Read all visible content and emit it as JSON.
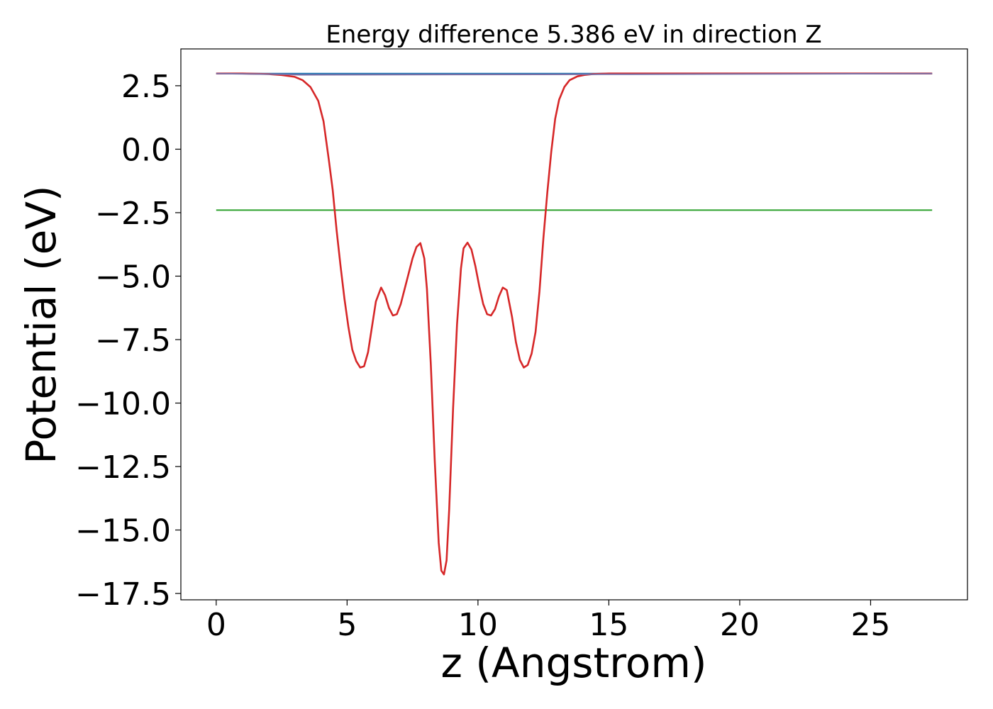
{
  "chart_data": {
    "type": "line",
    "title": "Energy difference 5.386 eV in direction Z",
    "xlabel": "z (Angstrom)",
    "ylabel": "Potential (eV)",
    "xlim": [
      -1.35,
      28.7
    ],
    "ylim": [
      -17.75,
      3.95
    ],
    "xticks": [
      0,
      5,
      10,
      15,
      20,
      25
    ],
    "xtick_labels": [
      "0",
      "5",
      "10",
      "15",
      "20",
      "25"
    ],
    "yticks": [
      2.5,
      0.0,
      -2.5,
      -5.0,
      -7.5,
      -10.0,
      -12.5,
      -15.0,
      -17.5
    ],
    "ytick_labels": [
      "2.5",
      "0.0",
      "−2.5",
      "−5.0",
      "−7.5",
      "−10.0",
      "−12.5",
      "−15.0",
      "−17.5"
    ],
    "grid": false,
    "legend": "none",
    "series": [
      {
        "color": "#1f77b4",
        "x": [
          0,
          27.35
        ],
        "y": [
          2.98,
          2.98
        ]
      },
      {
        "color": "#2ca02c",
        "x": [
          0,
          27.35
        ],
        "y": [
          -2.4,
          -2.4
        ]
      },
      {
        "color": "#d62728",
        "x": [
          0,
          1.0,
          2.0,
          2.5,
          3.0,
          3.3,
          3.6,
          3.9,
          4.1,
          4.3,
          4.45,
          4.6,
          4.75,
          4.9,
          5.05,
          5.2,
          5.35,
          5.5,
          5.65,
          5.8,
          5.95,
          6.1,
          6.3,
          6.45,
          6.6,
          6.75,
          6.9,
          7.05,
          7.2,
          7.35,
          7.5,
          7.65,
          7.8,
          7.95,
          8.05,
          8.2,
          8.35,
          8.5,
          8.6,
          8.7,
          8.8,
          8.9,
          9.05,
          9.2,
          9.35,
          9.45,
          9.6,
          9.75,
          9.9,
          10.05,
          10.2,
          10.35,
          10.5,
          10.65,
          10.8,
          10.95,
          11.1,
          11.3,
          11.45,
          11.6,
          11.75,
          11.9,
          12.05,
          12.2,
          12.35,
          12.5,
          12.65,
          12.8,
          12.95,
          13.1,
          13.3,
          13.5,
          13.8,
          14.1,
          14.4,
          14.7,
          15.0,
          16.0,
          20.0,
          24.0,
          27.35
        ],
        "y": [
          2.98,
          2.98,
          2.96,
          2.92,
          2.85,
          2.72,
          2.45,
          1.9,
          1.1,
          -0.4,
          -1.6,
          -3.2,
          -4.6,
          -5.9,
          -7.0,
          -7.9,
          -8.35,
          -8.6,
          -8.55,
          -8.0,
          -7.0,
          -6.0,
          -5.45,
          -5.75,
          -6.25,
          -6.55,
          -6.5,
          -6.1,
          -5.5,
          -4.9,
          -4.3,
          -3.85,
          -3.7,
          -4.3,
          -5.5,
          -8.5,
          -12.3,
          -15.5,
          -16.6,
          -16.75,
          -16.2,
          -14.2,
          -10.2,
          -6.9,
          -4.7,
          -3.9,
          -3.68,
          -3.95,
          -4.6,
          -5.4,
          -6.1,
          -6.5,
          -6.55,
          -6.3,
          -5.8,
          -5.45,
          -5.55,
          -6.6,
          -7.6,
          -8.3,
          -8.6,
          -8.5,
          -8.05,
          -7.2,
          -5.6,
          -3.5,
          -1.7,
          -0.1,
          1.2,
          1.95,
          2.45,
          2.72,
          2.87,
          2.93,
          2.96,
          2.97,
          2.98,
          2.98,
          2.98,
          2.98,
          2.98
        ]
      },
      {
        "color": "#7a6fa6",
        "x": [
          0,
          2.5,
          3.2,
          15.0,
          27.35
        ],
        "y": [
          2.98,
          2.95,
          2.93,
          2.95,
          2.98
        ]
      }
    ]
  }
}
